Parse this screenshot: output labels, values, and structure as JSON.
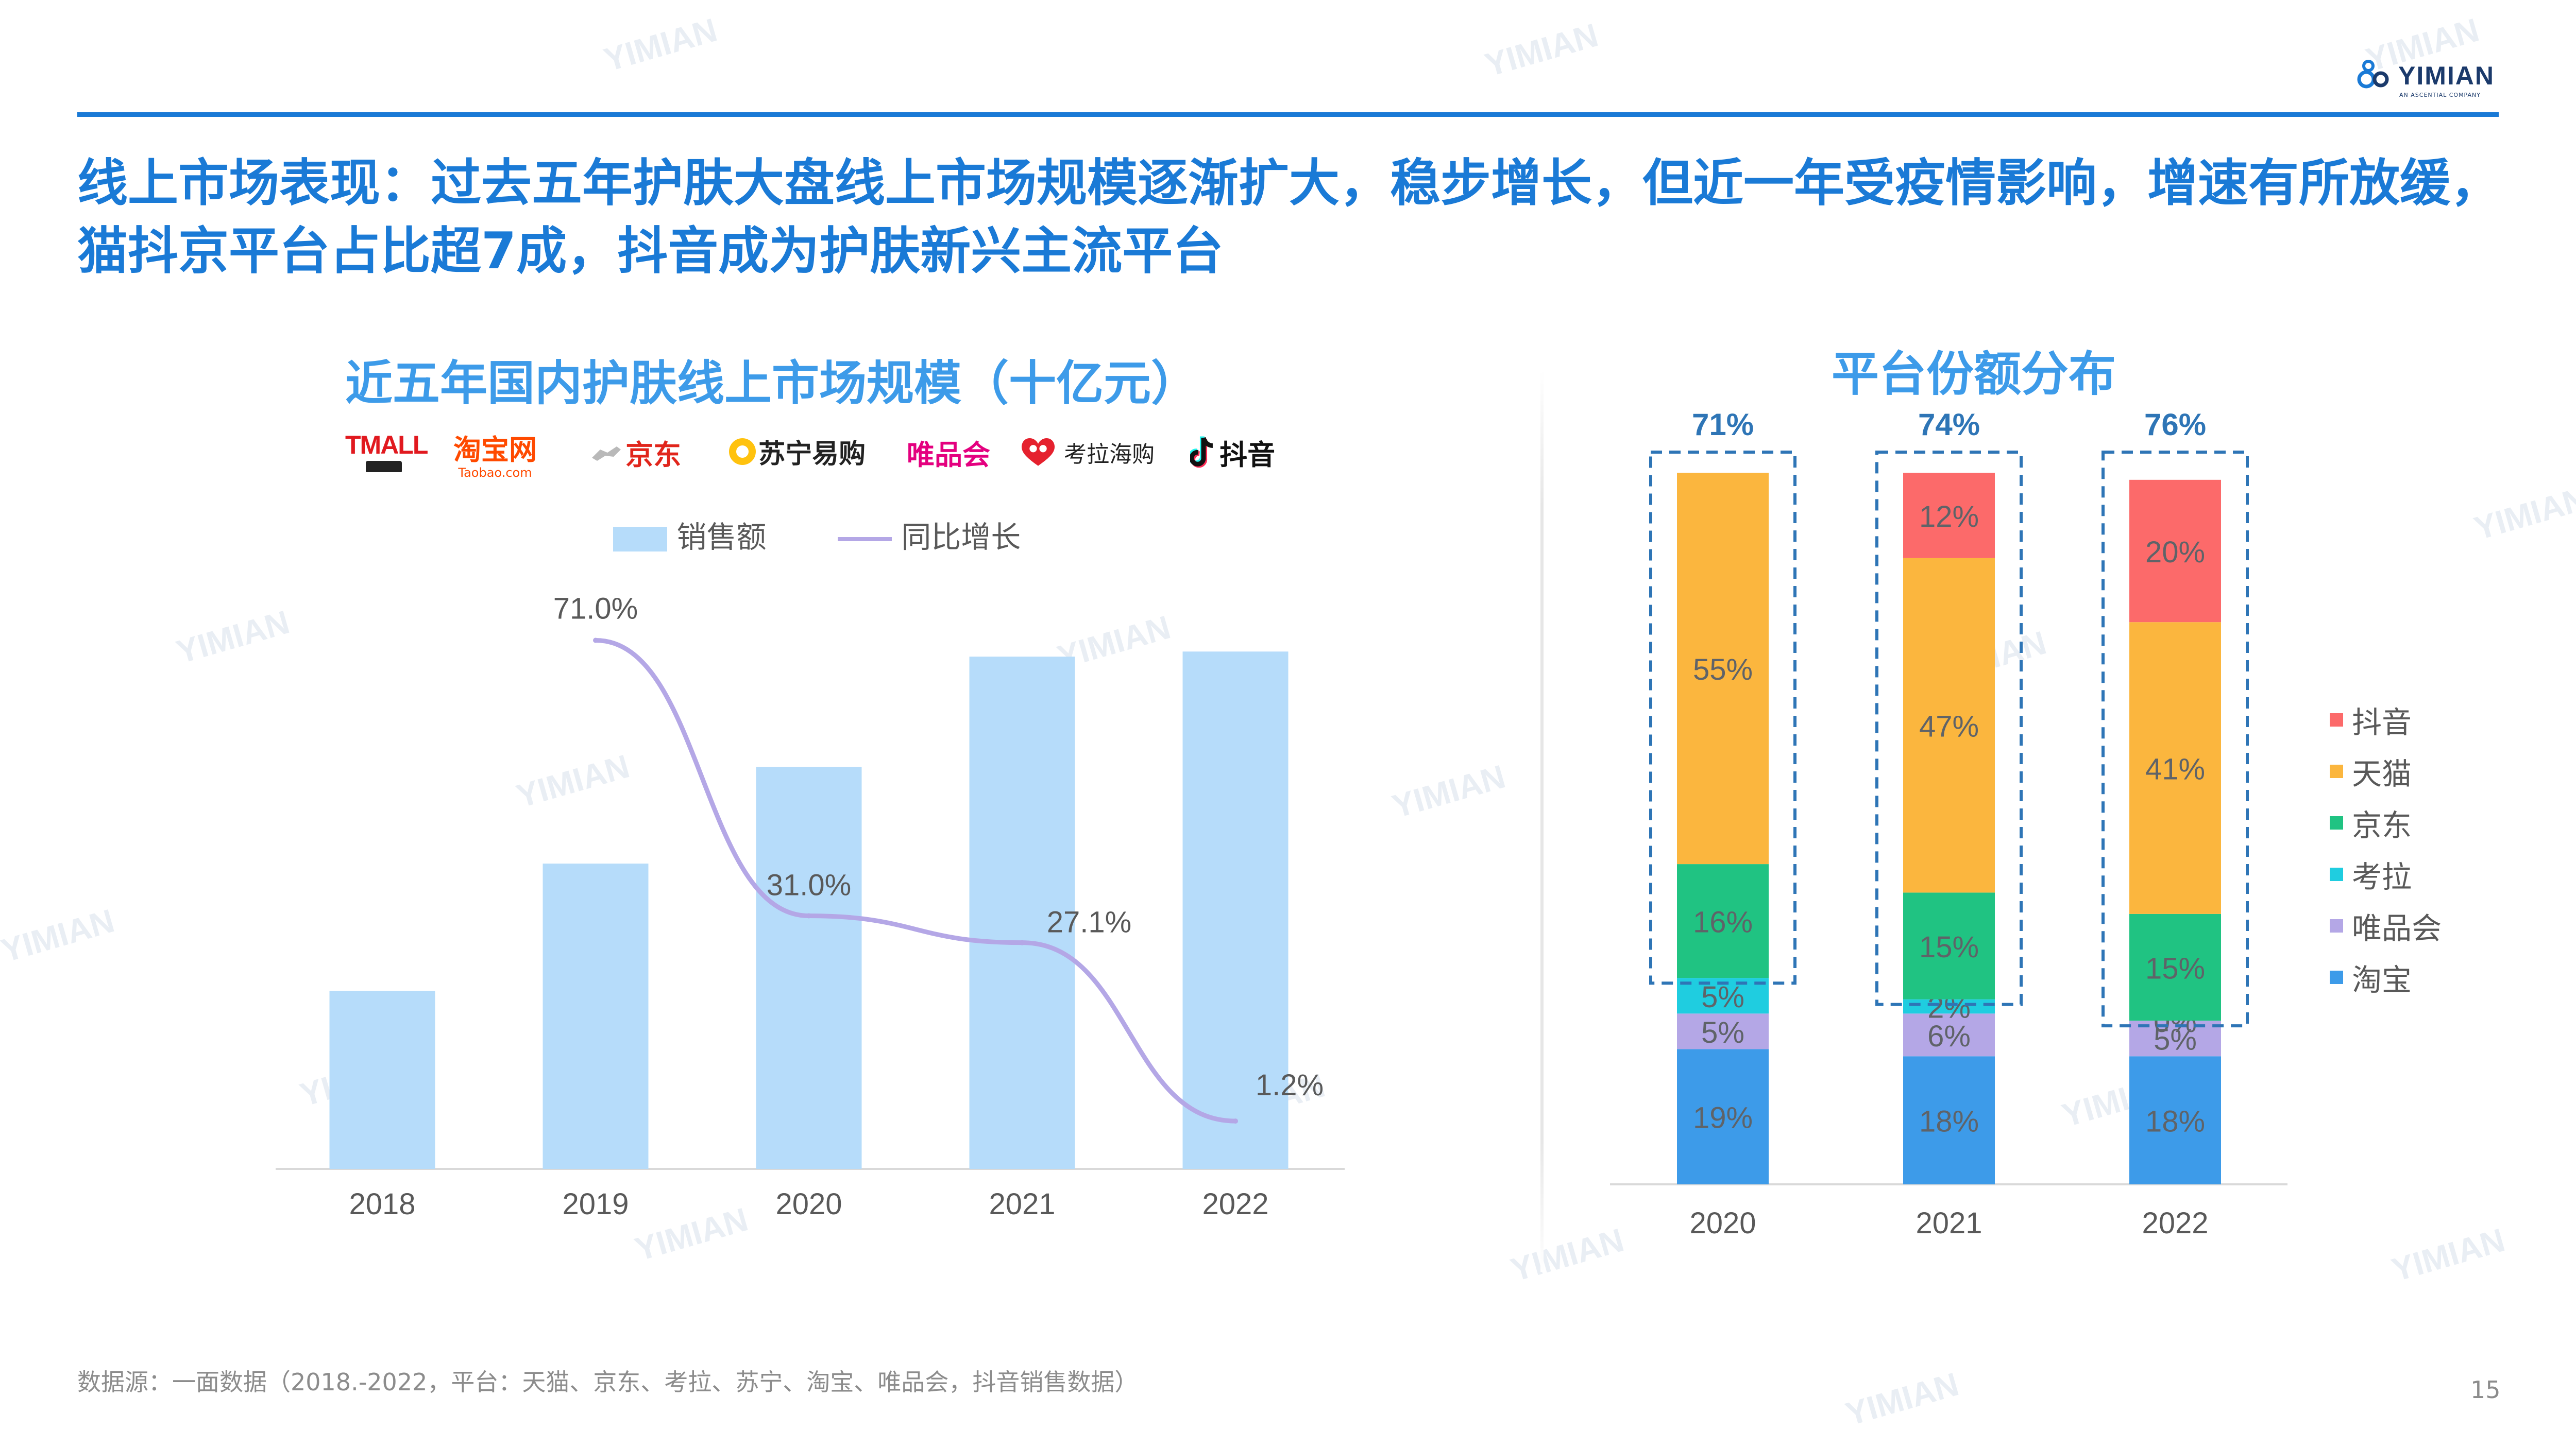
{
  "brand": {
    "name": "YIMIAN",
    "sub": "AN ASCENTIAL COMPANY"
  },
  "headline": "线上市场表现：过去五年护肤大盘线上市场规模逐渐扩大，稳步增长，但近一年受疫情影响，增速有所放缓，猫抖京平台占比超7成，抖音成为护肤新兴主流平台",
  "left_chart": {
    "title": "近五年国内护肤线上市场规模（十亿元）",
    "logos": {
      "tmall": "TMALL",
      "taobao": "淘宝网",
      "taobao_sub": "Taobao.com",
      "jd": "京东",
      "suning": "苏宁易购",
      "vip": "唯品会",
      "kaola": "考拉海购",
      "douyin": "抖音"
    },
    "legend": {
      "bar": "销售额",
      "line": "同比增长"
    }
  },
  "right_chart": {
    "title": "平台份额分布"
  },
  "chart_data": [
    {
      "type": "bar",
      "title": "近五年国内护肤线上市场规模（十亿元）",
      "categories": [
        "2018",
        "2019",
        "2020",
        "2021",
        "2022"
      ],
      "series": [
        {
          "name": "销售额",
          "type": "bar",
          "values": [
            105,
            180,
            237,
            302,
            305
          ]
        },
        {
          "name": "同比增长",
          "type": "line",
          "values": [
            71.0,
            31.0,
            27.1,
            1.2
          ],
          "x": [
            "2019",
            "2020",
            "2021",
            "2022"
          ],
          "labels": [
            "71.0%",
            "31.0%",
            "27.1%",
            "1.2%"
          ]
        }
      ],
      "ylim": [
        0,
        340
      ],
      "xlabel": "",
      "ylabel": "",
      "legend_position": "top"
    },
    {
      "type": "bar",
      "stacked": true,
      "title": "平台份额分布",
      "categories": [
        "2020",
        "2021",
        "2022"
      ],
      "series": [
        {
          "name": "淘宝",
          "color": "#3d9be9",
          "values": [
            19,
            18,
            18
          ]
        },
        {
          "name": "唯品会",
          "color": "#b4a7e6",
          "values": [
            5,
            6,
            5
          ]
        },
        {
          "name": "考拉",
          "color": "#1fcde0",
          "values": [
            5,
            2,
            0
          ]
        },
        {
          "name": "京东",
          "color": "#20c382",
          "values": [
            16,
            15,
            15
          ]
        },
        {
          "name": "天猫",
          "color": "#fbb63e",
          "values": [
            55,
            47,
            41
          ]
        },
        {
          "name": "抖音",
          "color": "#fc6a6a",
          "values": [
            0,
            12,
            20
          ]
        }
      ],
      "legend_order": [
        "抖音",
        "天猫",
        "京东",
        "考拉",
        "唯品会",
        "淘宝"
      ],
      "group_totals": [
        "71%",
        "74%",
        "76%"
      ],
      "ylim": [
        0,
        100
      ],
      "legend_position": "right"
    }
  ],
  "footer": {
    "source": "数据源：一面数据（2018.-2022，平台：天猫、京东、考拉、苏宁、淘宝、唯品会，抖音销售数据）",
    "page_number": "15"
  }
}
